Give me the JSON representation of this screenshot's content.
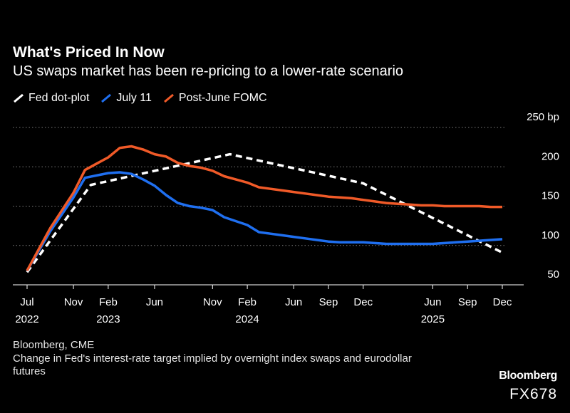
{
  "title": "What's Priced In Now",
  "subtitle": "US swaps market has been re-pricing to a lower-rate scenario",
  "legend": [
    {
      "label": "Fed dot-plot",
      "color": "#ffffff",
      "style": "dashed"
    },
    {
      "label": "July 11",
      "color": "#1f6ff0",
      "style": "solid"
    },
    {
      "label": "Post-June FOMC",
      "color": "#f05a28",
      "style": "solid"
    }
  ],
  "source": "Bloomberg, CME",
  "note": "Change in Fed's interest-rate target implied by overnight index swaps and eurodollar futures",
  "brand": "Bloomberg",
  "code": "FX678",
  "chart_data": {
    "type": "line",
    "xlabel": "",
    "ylabel": "",
    "y_unit": "bp",
    "ylim": [
      50,
      250
    ],
    "xlim": [
      0,
      41
    ],
    "y_ticks": [
      {
        "value": 250,
        "label": "250 bp"
      },
      {
        "value": 200,
        "label": "200"
      },
      {
        "value": 150,
        "label": "150"
      },
      {
        "value": 100,
        "label": "100"
      },
      {
        "value": 50,
        "label": "50"
      }
    ],
    "x_ticks": [
      {
        "month": 0,
        "label": "Jul"
      },
      {
        "month": 4,
        "label": "Nov"
      },
      {
        "month": 7,
        "label": "Feb"
      },
      {
        "month": 11,
        "label": "Jun"
      },
      {
        "month": 16,
        "label": "Nov"
      },
      {
        "month": 19,
        "label": "Feb"
      },
      {
        "month": 23,
        "label": "Jun"
      },
      {
        "month": 26,
        "label": "Sep"
      },
      {
        "month": 29,
        "label": "Dec"
      },
      {
        "month": 35,
        "label": "Jun"
      },
      {
        "month": 38,
        "label": "Sep"
      },
      {
        "month": 41,
        "label": "Dec"
      }
    ],
    "year_labels": [
      {
        "month": 0,
        "label": "2022"
      },
      {
        "month": 7,
        "label": "2023"
      },
      {
        "month": 19,
        "label": "2024"
      },
      {
        "month": 35,
        "label": "2025"
      }
    ],
    "series": [
      {
        "name": "Fed dot-plot",
        "color": "#ffffff",
        "dashed": true,
        "x": [
          0,
          5.5,
          17.5,
          29,
          41
        ],
        "y": [
          66,
          177,
          216,
          179,
          91
        ]
      },
      {
        "name": "July 11",
        "color": "#1f6ff0",
        "dashed": false,
        "x": [
          0,
          2,
          4,
          5,
          6,
          7,
          8,
          9,
          10,
          11,
          12,
          13,
          14,
          15,
          16,
          17,
          18,
          19,
          20,
          21,
          22,
          23,
          24,
          25,
          26,
          27,
          28,
          29,
          30,
          31,
          32,
          33,
          34,
          35,
          36,
          37,
          38,
          39,
          40,
          41
        ],
        "y": [
          68,
          118,
          161,
          186,
          189,
          192,
          193,
          191,
          184,
          176,
          164,
          154,
          150,
          148,
          145,
          136,
          131,
          126,
          117,
          115,
          113,
          111,
          109,
          107,
          105,
          104,
          104,
          104,
          103,
          102,
          102,
          102,
          102,
          102,
          103,
          104,
          105,
          106,
          107,
          108
        ]
      },
      {
        "name": "Post-June FOMC",
        "color": "#f05a28",
        "dashed": false,
        "x": [
          0,
          2,
          4,
          5,
          6,
          7,
          8,
          9,
          10,
          11,
          12,
          13,
          14,
          15,
          16,
          17,
          18,
          19,
          20,
          21,
          22,
          23,
          24,
          25,
          26,
          27,
          28,
          29,
          30,
          31,
          32,
          33,
          34,
          35,
          36,
          37,
          38,
          39,
          40,
          41
        ],
        "y": [
          68,
          122,
          167,
          196,
          204,
          212,
          224,
          226,
          222,
          216,
          213,
          205,
          201,
          199,
          195,
          188,
          184,
          180,
          174,
          172,
          170,
          168,
          166,
          164,
          162,
          161,
          160,
          158,
          156,
          154,
          153,
          152,
          151,
          151,
          150,
          150,
          150,
          150,
          149,
          149
        ]
      }
    ]
  }
}
